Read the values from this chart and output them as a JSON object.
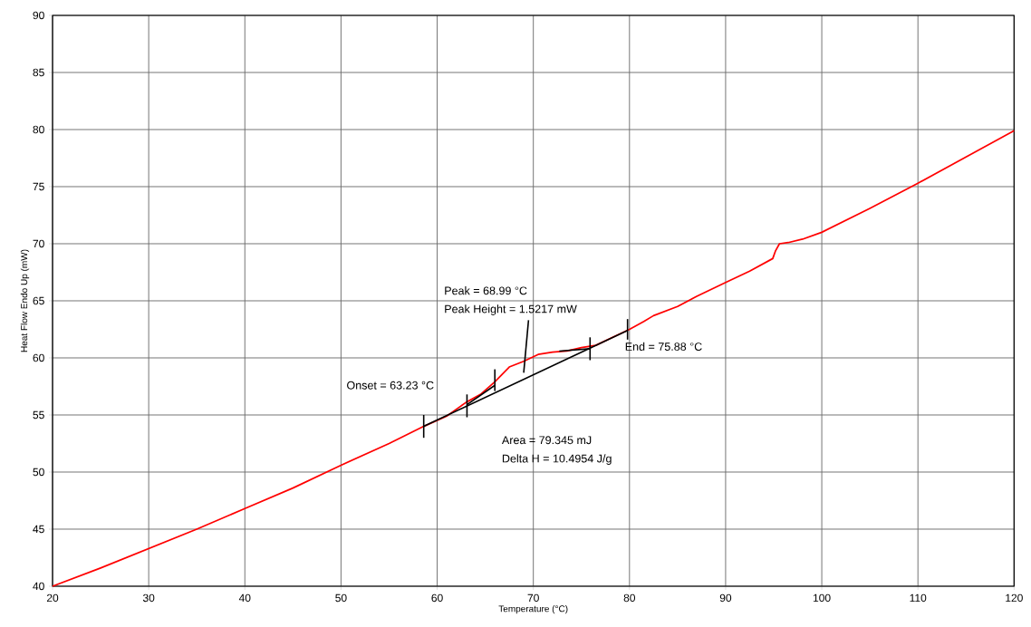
{
  "chart_data": {
    "type": "line",
    "xlabel": "Temperature (°C)",
    "ylabel": "Heat Flow Endo Up (mW)",
    "xlim": [
      20,
      120
    ],
    "xticks": [
      20,
      30,
      40,
      50,
      60,
      70,
      80,
      90,
      100,
      110,
      120
    ],
    "ylim": [
      40,
      90
    ],
    "yticks": [
      40,
      45,
      50,
      55,
      60,
      65,
      70,
      75,
      80,
      85,
      90
    ],
    "grid": true,
    "marker": "none",
    "line_style": "solid",
    "series": [
      {
        "color": "#ff0000",
        "x": [
          20,
          25,
          30,
          35,
          40,
          45,
          50,
          55,
          58.6,
          61,
          63,
          64.5,
          66,
          67.5,
          69,
          70.5,
          72,
          73.5,
          75,
          76.5,
          78,
          80,
          81.5,
          82.5,
          85,
          87,
          90,
          92.5,
          94.9,
          95.2,
          95.6,
          96.5,
          98,
          100,
          105,
          110,
          115,
          120
        ],
        "values": [
          40,
          41.6,
          43.3,
          45.0,
          46.8,
          48.6,
          50.6,
          52.5,
          54.0,
          54.9,
          56.1,
          56.8,
          57.9,
          59.2,
          59.7,
          60.3,
          60.5,
          60.6,
          60.9,
          61.1,
          61.7,
          62.5,
          63.2,
          63.7,
          64.5,
          65.4,
          66.6,
          67.6,
          68.7,
          69.4,
          70.0,
          70.1,
          70.4,
          71.0,
          73.1,
          75.3,
          77.6,
          79.9
        ]
      },
      {
        "color": "#000000",
        "x": [
          58.6,
          79.8
        ],
        "values": [
          54.0,
          62.4
        ]
      },
      {
        "color": "#000000",
        "x": [
          63.1,
          66.0
        ],
        "values": [
          55.9,
          57.6
        ]
      },
      {
        "color": "#000000",
        "x": [
          72.7,
          75.9
        ],
        "values": [
          60.6,
          60.8
        ]
      },
      {
        "color": "#000000",
        "x": [
          69.0,
          69.5
        ],
        "values": [
          58.7,
          63.3
        ]
      },
      {
        "color": "#000000",
        "x": [
          58.6,
          58.6
        ],
        "values": [
          53.0,
          55.0
        ]
      },
      {
        "color": "#000000",
        "x": [
          63.1,
          63.1
        ],
        "values": [
          54.8,
          56.8
        ]
      },
      {
        "color": "#000000",
        "x": [
          66.0,
          66.0
        ],
        "values": [
          57.1,
          59.0
        ]
      },
      {
        "color": "#000000",
        "x": [
          75.9,
          75.9
        ],
        "values": [
          59.8,
          61.8
        ]
      },
      {
        "color": "#000000",
        "x": [
          79.8,
          79.8
        ],
        "values": [
          61.6,
          63.4
        ]
      }
    ],
    "annotations": [
      "Onset = 63.23 °C",
      "Peak = 68.99 °C",
      "Peak Height = 1.5217 mW",
      "End = 75.88 °C",
      "Area = 79.345 mJ",
      "Delta H = 10.4954 J/g"
    ]
  }
}
